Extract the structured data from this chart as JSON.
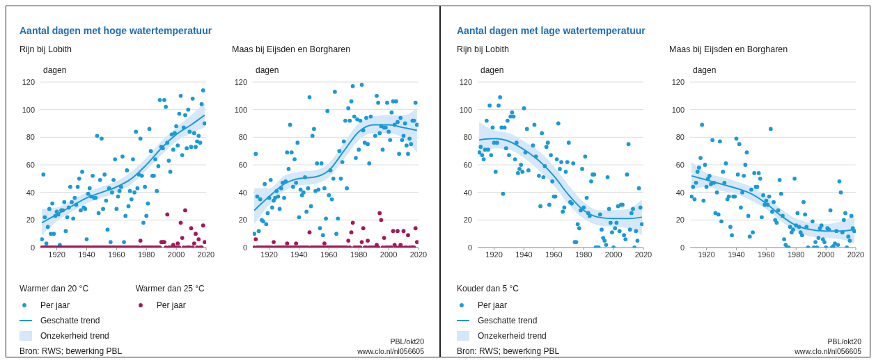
{
  "chart_data": [
    {
      "type": "scatter",
      "title": "Aantal dagen met hoge watertemperatuur",
      "subtitle": "Rijn bij Lobith",
      "ylabel": "dagen",
      "legend": "bottom",
      "legend_title": [
        "Warmer dan 20 °C",
        "Warmer dan 25 °C"
      ],
      "grid": "y",
      "xlim": [
        1909,
        2020
      ],
      "ylim": [
        0,
        120
      ],
      "xticks": [
        1920,
        1940,
        1960,
        1980,
        2000,
        2020
      ],
      "yticks": [
        0,
        20,
        40,
        60,
        80,
        100,
        120
      ],
      "annotations": [
        "Onzekerheid trend",
        "Bron: RWS; bewerking PBL"
      ],
      "x": [
        1910,
        1911,
        1912,
        1913,
        1914,
        1915,
        1916,
        1917,
        1918,
        1919,
        1920,
        1921,
        1922,
        1923,
        1924,
        1925,
        1926,
        1927,
        1928,
        1929,
        1930,
        1931,
        1932,
        1933,
        1934,
        1935,
        1936,
        1937,
        1938,
        1939,
        1940,
        1941,
        1942,
        1943,
        1944,
        1945,
        1946,
        1947,
        1948,
        1949,
        1950,
        1951,
        1952,
        1953,
        1954,
        1955,
        1956,
        1957,
        1958,
        1959,
        1960,
        1961,
        1962,
        1963,
        1964,
        1965,
        1966,
        1967,
        1968,
        1969,
        1970,
        1971,
        1972,
        1973,
        1974,
        1975,
        1976,
        1977,
        1978,
        1979,
        1980,
        1981,
        1982,
        1983,
        1984,
        1985,
        1986,
        1987,
        1988,
        1989,
        1990,
        1991,
        1992,
        1993,
        1994,
        1995,
        1996,
        1997,
        1998,
        1999,
        2000,
        2001,
        2002,
        2003,
        2004,
        2005,
        2006,
        2007,
        2008,
        2009,
        2010,
        2011,
        2012,
        2013,
        2014,
        2015,
        2016,
        2017,
        2018,
        2019
      ],
      "series": [
        {
          "type": "scatter",
          "name": "Per jaar",
          "color": "#1a9ad6",
          "marker": "circle",
          "values": [
            6,
            53,
            22,
            3,
            15,
            28,
            10,
            32,
            10,
            23,
            26,
            24,
            2,
            27,
            27,
            33,
            12,
            22,
            29,
            44,
            33,
            21,
            36,
            31,
            44,
            50,
            27,
            55,
            29,
            28,
            6,
            39,
            43,
            37,
            52,
            36,
            36,
            81,
            25,
            49,
            79,
            28,
            53,
            34,
            13,
            43,
            4,
            40,
            49,
            64,
            28,
            37,
            41,
            44,
            66,
            4,
            23,
            56,
            30,
            41,
            35,
            64,
            40,
            84,
            43,
            53,
            79,
            52,
            18,
            44,
            23,
            32,
            86,
            70,
            52,
            52,
            64,
            41,
            59,
            107,
            73,
            72,
            107,
            102,
            76,
            63,
            55,
            82,
            71,
            83,
            88,
            74,
            97,
            110,
            67,
            87,
            96,
            72,
            100,
            84,
            73,
            108,
            83,
            73,
            77,
            81,
            76,
            104,
            114,
            90
          ]
        },
        {
          "type": "line",
          "name": "Geschatte trend",
          "color": "#1a9ad6",
          "x": [
            1910,
            1920,
            1930,
            1940,
            1950,
            1960,
            1970,
            1980,
            1990,
            2000,
            2010,
            2019
          ],
          "values": [
            18,
            24,
            30,
            36,
            40,
            44,
            50,
            60,
            72,
            82,
            89,
            96
          ],
          "lower": [
            9,
            19,
            26,
            32,
            36,
            40,
            46,
            56,
            67,
            77,
            83,
            87
          ],
          "upper": [
            28,
            29,
            34,
            40,
            44,
            48,
            55,
            65,
            77,
            87,
            96,
            105
          ]
        },
        {
          "type": "scatter",
          "name": "Per jaar",
          "color": "#a3195b",
          "marker": "circle",
          "values": [
            0,
            0,
            0,
            0,
            0,
            0,
            0,
            0,
            0,
            0,
            0,
            0,
            0,
            0,
            0,
            0,
            0,
            0,
            0,
            0,
            0,
            0,
            0,
            0,
            0,
            0,
            0,
            0,
            0,
            0,
            0,
            0,
            0,
            0,
            0,
            0,
            0,
            0,
            0,
            0,
            0,
            0,
            0,
            0,
            0,
            0,
            0,
            0,
            0,
            0,
            0,
            0,
            0,
            0,
            0,
            0,
            0,
            0,
            0,
            0,
            0,
            0,
            0,
            0,
            0,
            0,
            5,
            0,
            0,
            0,
            0,
            0,
            0,
            0,
            0,
            0,
            0,
            0,
            0,
            0,
            4,
            4,
            4,
            0,
            24,
            0,
            0,
            0,
            2,
            0,
            0,
            3,
            0,
            18,
            7,
            0,
            27,
            0,
            0,
            0,
            14,
            0,
            3,
            10,
            0,
            6,
            0,
            0,
            16,
            4
          ]
        }
      ]
    },
    {
      "type": "scatter",
      "subtitle": "Maas bij Eijsden en Borgharen",
      "ylabel": "dagen",
      "grid": "y",
      "xlim": [
        1909,
        2020
      ],
      "ylim": [
        0,
        120
      ],
      "xticks": [
        1920,
        1940,
        1960,
        1980,
        2000,
        2020
      ],
      "yticks": [
        0,
        20,
        40,
        60,
        80,
        100,
        120
      ],
      "annotations": [
        "PBL/okt20",
        "www.clo.nl/nl056605"
      ],
      "x": [
        1910,
        1911,
        1912,
        1913,
        1914,
        1915,
        1916,
        1917,
        1918,
        1919,
        1920,
        1921,
        1922,
        1923,
        1924,
        1925,
        1926,
        1927,
        1928,
        1929,
        1930,
        1931,
        1932,
        1933,
        1934,
        1935,
        1936,
        1937,
        1938,
        1939,
        1940,
        1941,
        1942,
        1943,
        1944,
        1945,
        1946,
        1947,
        1948,
        1949,
        1950,
        1951,
        1952,
        1953,
        1954,
        1955,
        1956,
        1957,
        1958,
        1959,
        1960,
        1961,
        1962,
        1963,
        1964,
        1965,
        1966,
        1967,
        1968,
        1969,
        1970,
        1971,
        1972,
        1973,
        1974,
        1975,
        1976,
        1977,
        1978,
        1979,
        1980,
        1981,
        1982,
        1983,
        1984,
        1985,
        1986,
        1987,
        1988,
        1989,
        1990,
        1991,
        1992,
        1993,
        1994,
        1995,
        1996,
        1997,
        1998,
        1999,
        2000,
        2001,
        2002,
        2003,
        2004,
        2005,
        2006,
        2007,
        2008,
        2009,
        2010,
        2011,
        2012,
        2013,
        2014,
        2015,
        2016,
        2017,
        2018,
        2019
      ],
      "series": [
        {
          "type": "scatter",
          "color": "#1a9ad6",
          "marker": "circle",
          "values": [
            10,
            68,
            37,
            12,
            35,
            20,
            19,
            46,
            17,
            25,
            36,
            49,
            29,
            34,
            36,
            41,
            37,
            28,
            43,
            47,
            36,
            48,
            69,
            57,
            89,
            69,
            44,
            64,
            47,
            76,
            22,
            42,
            38,
            40,
            51,
            26,
            43,
            109,
            30,
            81,
            86,
            41,
            61,
            42,
            14,
            61,
            9,
            43,
            21,
            99,
            38,
            56,
            35,
            50,
            113,
            10,
            21,
            70,
            50,
            62,
            77,
            92,
            43,
            101,
            92,
            106,
            117,
            95,
            65,
            93,
            71,
            92,
            118,
            85,
            76,
            94,
            75,
            61,
            95,
            null,
            null,
            81,
            110,
            105,
            83,
            88,
            71,
            87,
            87,
            105,
            84,
            78,
            98,
            106,
            89,
            106,
            91,
            68,
            94,
            78,
            81,
            90,
            74,
            68,
            79,
            75,
            92,
            92,
            105,
            89
          ]
        },
        {
          "type": "line",
          "color": "#1a9ad6",
          "x": [
            1910,
            1920,
            1930,
            1940,
            1950,
            1960,
            1970,
            1980,
            1990,
            2000,
            2010,
            2019
          ],
          "values": [
            27,
            37,
            46,
            50,
            51,
            56,
            70,
            84,
            89,
            89,
            87,
            85
          ],
          "lower": [
            17,
            31,
            41,
            45,
            46,
            51,
            64,
            78,
            83,
            83,
            79,
            69
          ],
          "upper": [
            43,
            43,
            52,
            55,
            56,
            61,
            76,
            90,
            95,
            96,
            96,
            101
          ]
        },
        {
          "type": "scatter",
          "color": "#a3195b",
          "marker": "circle",
          "values": [
            0,
            6,
            0,
            0,
            0,
            0,
            0,
            0,
            0,
            0,
            0,
            0,
            0,
            4,
            0,
            0,
            0,
            0,
            0,
            0,
            0,
            0,
            3,
            0,
            0,
            0,
            0,
            0,
            3,
            0,
            0,
            0,
            0,
            0,
            0,
            0,
            0,
            11,
            0,
            0,
            0,
            0,
            0,
            0,
            0,
            0,
            0,
            3,
            0,
            0,
            0,
            0,
            0,
            0,
            0,
            0,
            0,
            0,
            0,
            0,
            0,
            0,
            0,
            5,
            0,
            11,
            18,
            0,
            0,
            0,
            0,
            0,
            4,
            14,
            0,
            0,
            5,
            0,
            0,
            0,
            0,
            0,
            2,
            0,
            25,
            20,
            0,
            7,
            0,
            0,
            0,
            0,
            0,
            12,
            2,
            0,
            12,
            0,
            2,
            0,
            12,
            0,
            0,
            9,
            0,
            0,
            0,
            0,
            14,
            4
          ]
        }
      ]
    },
    {
      "type": "scatter",
      "title": "Aantal dagen met lage watertemperatuur",
      "subtitle": "Rijn bij Lobith",
      "ylabel": "dagen",
      "legend": "bottom",
      "legend_title": [
        "Kouder dan 5 °C"
      ],
      "grid": "y",
      "xlim": [
        1909,
        2020
      ],
      "ylim": [
        0,
        120
      ],
      "xticks": [
        1920,
        1940,
        1960,
        1980,
        2000,
        2020
      ],
      "yticks": [
        0,
        20,
        40,
        60,
        80,
        100,
        120
      ],
      "annotations": [
        "Onzekerheid trend",
        "Bron: RWS; bewerking PBL"
      ],
      "x": [
        1910,
        1911,
        1912,
        1913,
        1914,
        1915,
        1916,
        1917,
        1918,
        1919,
        1920,
        1921,
        1922,
        1923,
        1924,
        1925,
        1926,
        1927,
        1928,
        1929,
        1930,
        1931,
        1932,
        1933,
        1934,
        1935,
        1936,
        1937,
        1938,
        1939,
        1940,
        1941,
        1942,
        1943,
        1944,
        1945,
        1946,
        1947,
        1948,
        1949,
        1950,
        1951,
        1952,
        1953,
        1954,
        1955,
        1956,
        1957,
        1958,
        1959,
        1960,
        1961,
        1962,
        1963,
        1964,
        1965,
        1966,
        1967,
        1968,
        1969,
        1970,
        1971,
        1972,
        1973,
        1974,
        1975,
        1976,
        1977,
        1978,
        1979,
        1980,
        1981,
        1982,
        1983,
        1984,
        1985,
        1986,
        1987,
        1988,
        1989,
        1990,
        1991,
        1992,
        1993,
        1994,
        1995,
        1996,
        1997,
        1998,
        1999,
        2000,
        2001,
        2002,
        2003,
        2004,
        2005,
        2006,
        2007,
        2008,
        2009,
        2010,
        2011,
        2012,
        2013,
        2014,
        2015,
        2016,
        2017,
        2018,
        2019
      ],
      "series": [
        {
          "type": "scatter",
          "name": "Per jaar",
          "color": "#1a9ad6",
          "marker": "circle",
          "values": [
            69,
            73,
            67,
            64,
            71,
            92,
            71,
            103,
            67,
            87,
            76,
            55,
            76,
            103,
            109,
            87,
            39,
            87,
            72,
            92,
            67,
            95,
            98,
            95,
            64,
            76,
            54,
            57,
            60,
            55,
            101,
            69,
            86,
            56,
            null,
            null,
            74,
            89,
            66,
            null,
            52,
            30,
            83,
            51,
            59,
            73,
            76,
            31,
            67,
            48,
            37,
            37,
            64,
            90,
            57,
            62,
            26,
            29,
            55,
            62,
            76,
            33,
            32,
            61,
            4,
            4,
            17,
            14,
            27,
            57,
            29,
            66,
            36,
            25,
            23,
            48,
            53,
            53,
            0,
            0,
            0,
            24,
            13,
            7,
            5,
            2,
            51,
            28,
            18,
            11,
            0,
            14,
            18,
            30,
            12,
            31,
            31,
            9,
            6,
            53,
            75,
            13,
            25,
            28,
            0,
            12,
            5,
            43,
            29,
            17
          ]
        },
        {
          "type": "line",
          "name": "Geschatte trend",
          "color": "#1a9ad6",
          "x": [
            1910,
            1920,
            1930,
            1940,
            1950,
            1960,
            1970,
            1980,
            1990,
            2000,
            2010,
            2019
          ],
          "values": [
            78,
            79,
            77,
            71,
            63,
            52,
            38,
            27,
            22,
            21,
            21,
            22
          ],
          "lower": [
            66,
            72,
            71,
            65,
            56,
            45,
            31,
            21,
            16,
            15,
            14,
            9
          ],
          "upper": [
            91,
            85,
            83,
            77,
            70,
            59,
            45,
            33,
            27,
            27,
            28,
            35
          ]
        }
      ]
    },
    {
      "type": "scatter",
      "subtitle": "Maas bij Eijsden en Borgharen",
      "ylabel": "dagen",
      "grid": "y",
      "xlim": [
        1909,
        2020
      ],
      "ylim": [
        0,
        120
      ],
      "xticks": [
        1920,
        1940,
        1960,
        1980,
        2000,
        2020
      ],
      "yticks": [
        0,
        20,
        40,
        60,
        80,
        100,
        120
      ],
      "annotations": [
        "PBL/okt20",
        "www.clo.nl/nl056605"
      ],
      "x": [
        1910,
        1911,
        1912,
        1913,
        1914,
        1915,
        1916,
        1917,
        1918,
        1919,
        1920,
        1921,
        1922,
        1923,
        1924,
        1925,
        1926,
        1927,
        1928,
        1929,
        1930,
        1931,
        1932,
        1933,
        1934,
        1935,
        1936,
        1937,
        1938,
        1939,
        1940,
        1941,
        1942,
        1943,
        1944,
        1945,
        1946,
        1947,
        1948,
        1949,
        1950,
        1951,
        1952,
        1953,
        1954,
        1955,
        1956,
        1957,
        1958,
        1959,
        1960,
        1961,
        1962,
        1963,
        1964,
        1965,
        1966,
        1967,
        1968,
        1969,
        1970,
        1971,
        1972,
        1973,
        1974,
        1975,
        1976,
        1977,
        1978,
        1979,
        1980,
        1981,
        1982,
        1983,
        1984,
        1985,
        1986,
        1987,
        1988,
        1989,
        1990,
        1991,
        1992,
        1993,
        1994,
        1995,
        1996,
        1997,
        1998,
        1999,
        2000,
        2001,
        2002,
        2003,
        2004,
        2005,
        2006,
        2007,
        2008,
        2009,
        2010,
        2011,
        2012,
        2013,
        2014,
        2015,
        2016,
        2017,
        2018,
        2019
      ],
      "series": [
        {
          "type": "scatter",
          "color": "#1a9ad6",
          "marker": "circle",
          "values": [
            37,
            44,
            35,
            47,
            55,
            58,
            65,
            89,
            34,
            60,
            44,
            50,
            52,
            46,
            78,
            47,
            25,
            40,
            24,
            77,
            19,
            55,
            47,
            61,
            35,
            37,
            15,
            9,
            37,
            37,
            79,
            53,
            75,
            29,
            40,
            52,
            60,
            69,
            23,
            8,
            42,
            11,
            54,
            44,
            44,
            54,
            50,
            22,
            38,
            31,
            34,
            31,
            37,
            86,
            26,
            33,
            20,
            18,
            27,
            49,
            39,
            23,
            6,
            2,
            0,
            0,
            15,
            11,
            13,
            50,
            16,
            25,
            15,
            11,
            9,
            33,
            24,
            15,
            0,
            null,
            null,
            19,
            0,
            4,
            0,
            7,
            14,
            16,
            6,
            4,
            0,
            14,
            13,
            27,
            0,
            1,
            3,
            12,
            2,
            48,
            40,
            11,
            20,
            25,
            0,
            8,
            5,
            23,
            14,
            12
          ]
        },
        {
          "type": "line",
          "color": "#1a9ad6",
          "x": [
            1910,
            1920,
            1930,
            1940,
            1950,
            1960,
            1970,
            1980,
            1990,
            2000,
            2010,
            2019
          ],
          "values": [
            52,
            49,
            46,
            43,
            39,
            32,
            23,
            16,
            13,
            12,
            12,
            13
          ],
          "lower": [
            42,
            44,
            41,
            39,
            34,
            28,
            19,
            12,
            8,
            7,
            6,
            3
          ],
          "upper": [
            62,
            54,
            51,
            48,
            44,
            37,
            28,
            21,
            18,
            17,
            19,
            23
          ]
        }
      ]
    }
  ]
}
